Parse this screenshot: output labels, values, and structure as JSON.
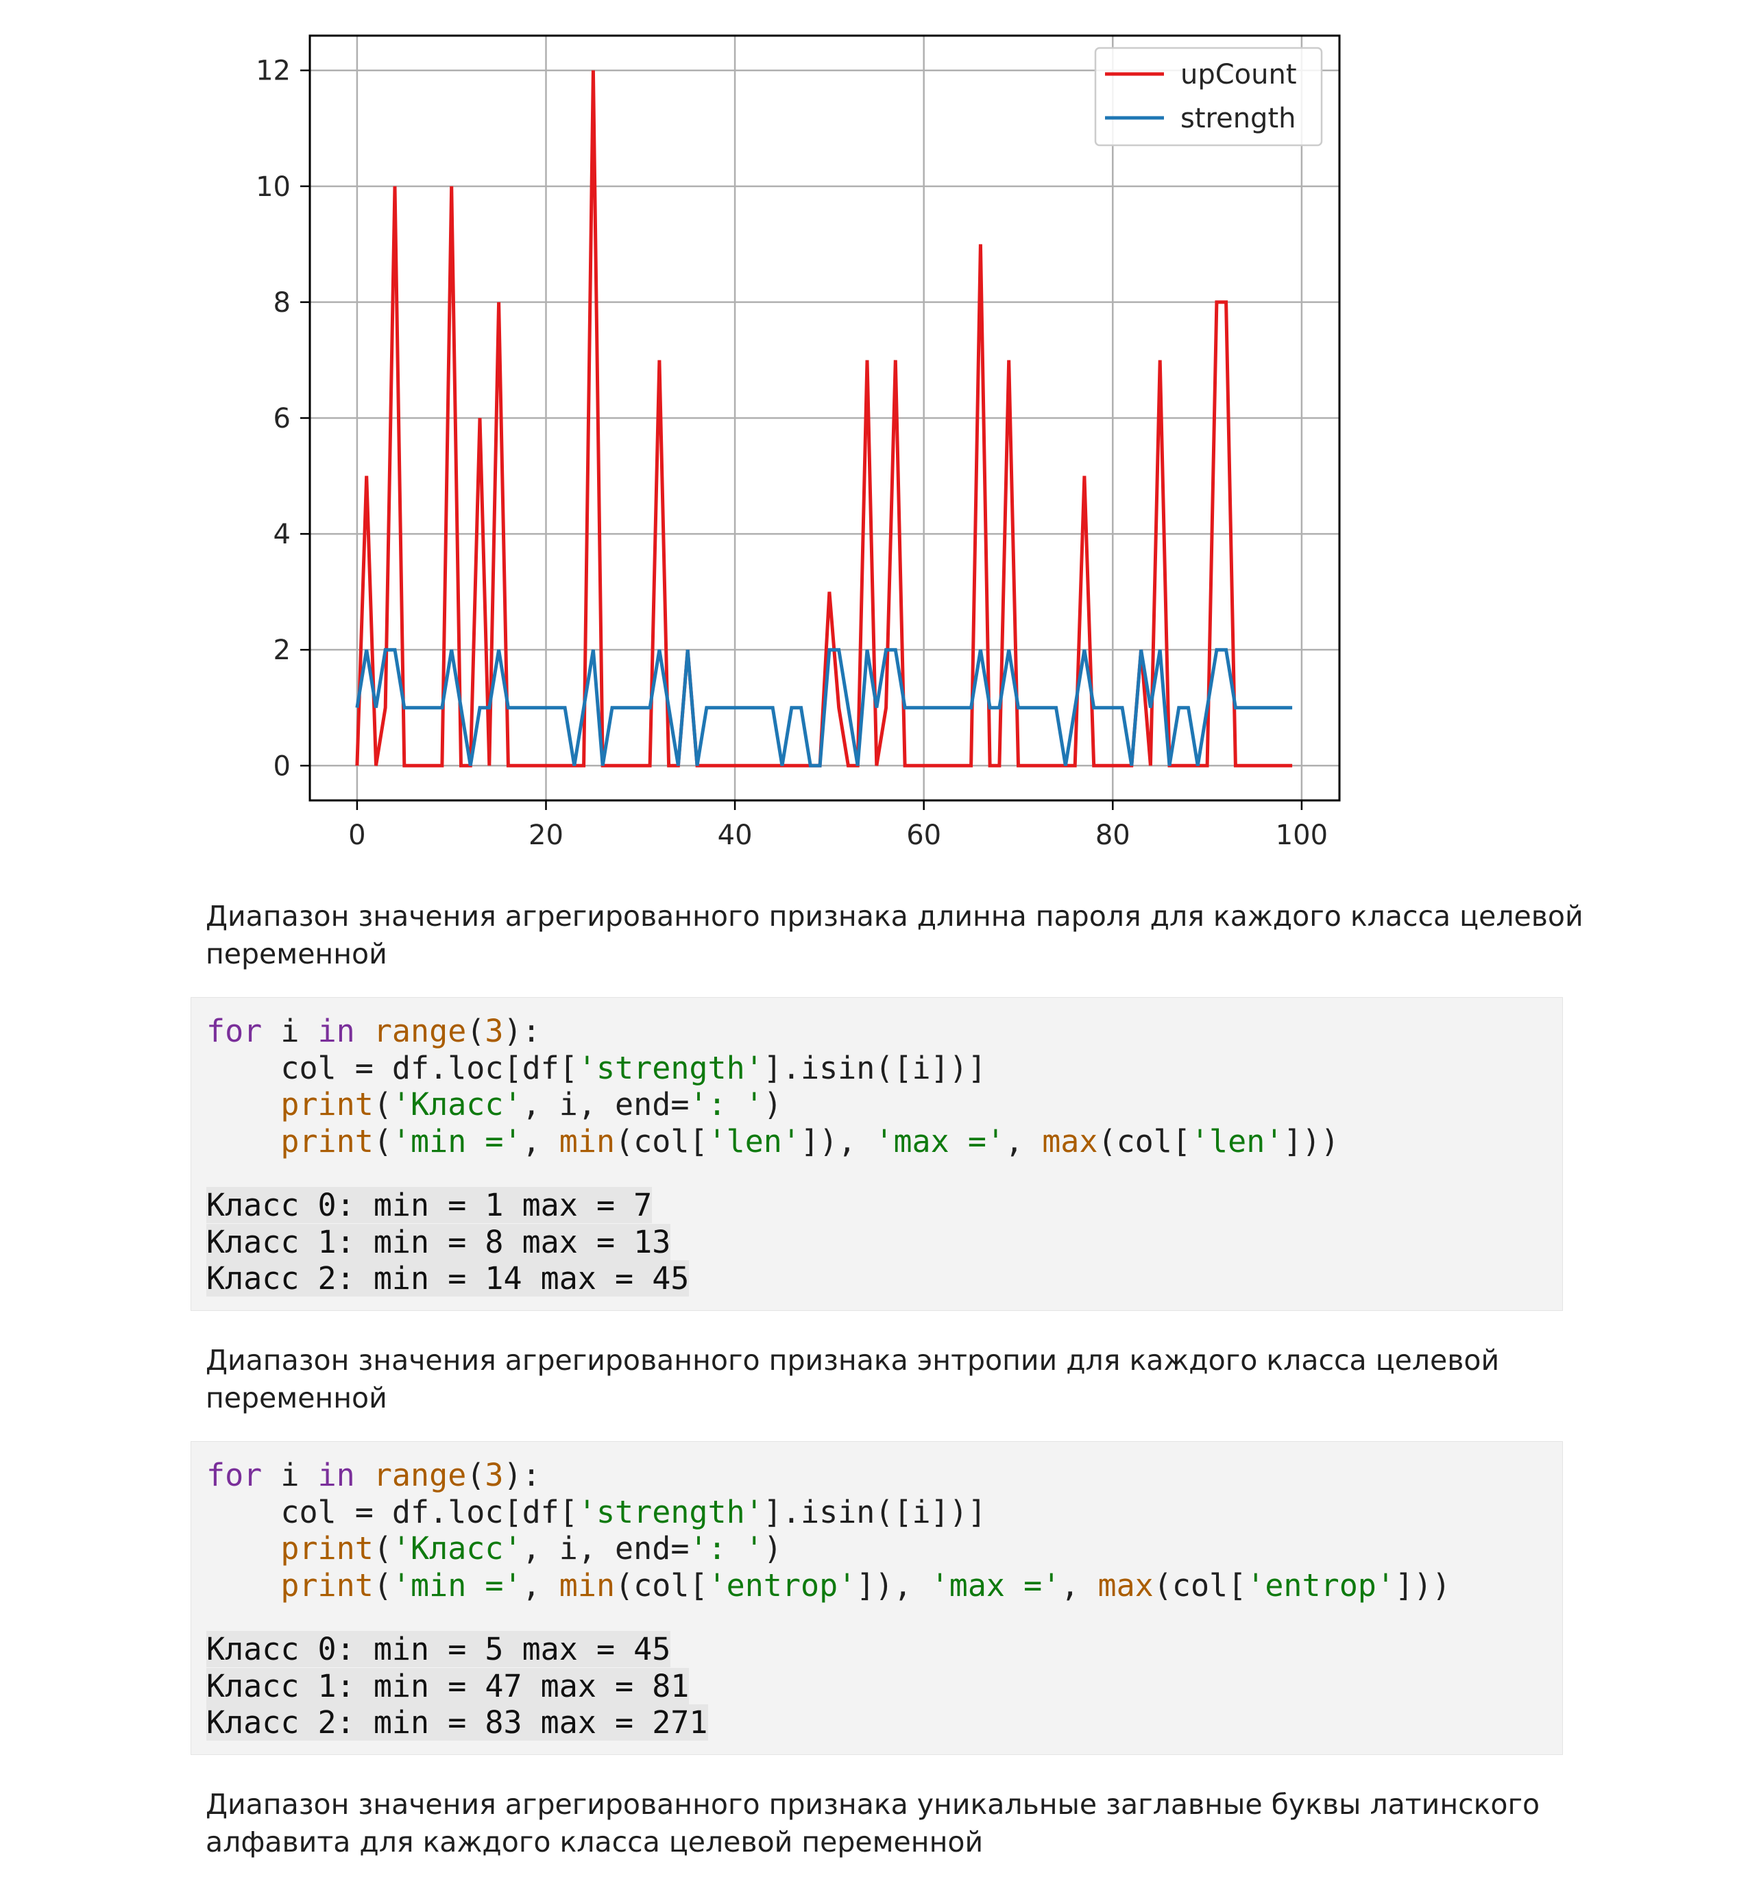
{
  "chart_data": {
    "type": "line",
    "title": "",
    "xlabel": "",
    "ylabel": "",
    "xlim": [
      -5,
      104
    ],
    "ylim": [
      -0.6,
      12.6
    ],
    "xticks": [
      0,
      20,
      40,
      60,
      80,
      100
    ],
    "yticks": [
      0,
      2,
      4,
      6,
      8,
      10,
      12
    ],
    "grid": true,
    "legend_position": "top-right",
    "series": [
      {
        "name": "upCount",
        "color": "#e31a1c",
        "x": [
          0,
          1,
          2,
          3,
          4,
          5,
          6,
          7,
          8,
          9,
          10,
          11,
          12,
          13,
          14,
          15,
          16,
          17,
          18,
          19,
          20,
          21,
          22,
          23,
          24,
          25,
          26,
          27,
          28,
          29,
          30,
          31,
          32,
          33,
          34,
          35,
          36,
          37,
          38,
          39,
          40,
          41,
          42,
          43,
          44,
          45,
          46,
          47,
          48,
          49,
          50,
          51,
          52,
          53,
          54,
          55,
          56,
          57,
          58,
          59,
          60,
          61,
          62,
          63,
          64,
          65,
          66,
          67,
          68,
          69,
          70,
          71,
          72,
          73,
          74,
          75,
          76,
          77,
          78,
          79,
          80,
          81,
          82,
          83,
          84,
          85,
          86,
          87,
          88,
          89,
          90,
          91,
          92,
          93,
          94,
          95,
          96,
          97,
          98,
          99
        ],
        "values": [
          0,
          5,
          0,
          1,
          10,
          0,
          0,
          0,
          0,
          0,
          10,
          0,
          0,
          6,
          0,
          8,
          0,
          0,
          0,
          0,
          0,
          0,
          0,
          0,
          0,
          12,
          0,
          0,
          0,
          0,
          0,
          0,
          7,
          0,
          0,
          2,
          0,
          0,
          0,
          0,
          0,
          0,
          0,
          0,
          0,
          0,
          0,
          0,
          0,
          0,
          3,
          1,
          0,
          0,
          7,
          0,
          1,
          7,
          0,
          0,
          0,
          0,
          0,
          0,
          0,
          0,
          9,
          0,
          0,
          7,
          0,
          0,
          0,
          0,
          0,
          0,
          0,
          5,
          0,
          0,
          0,
          0,
          0,
          2,
          0,
          7,
          0,
          0,
          0,
          0,
          0,
          8,
          8,
          0,
          0,
          0,
          0,
          0,
          0,
          0
        ]
      },
      {
        "name": "strength",
        "color": "#1f77b4",
        "x": [
          0,
          1,
          2,
          3,
          4,
          5,
          6,
          7,
          8,
          9,
          10,
          11,
          12,
          13,
          14,
          15,
          16,
          17,
          18,
          19,
          20,
          21,
          22,
          23,
          24,
          25,
          26,
          27,
          28,
          29,
          30,
          31,
          32,
          33,
          34,
          35,
          36,
          37,
          38,
          39,
          40,
          41,
          42,
          43,
          44,
          45,
          46,
          47,
          48,
          49,
          50,
          51,
          52,
          53,
          54,
          55,
          56,
          57,
          58,
          59,
          60,
          61,
          62,
          63,
          64,
          65,
          66,
          67,
          68,
          69,
          70,
          71,
          72,
          73,
          74,
          75,
          76,
          77,
          78,
          79,
          80,
          81,
          82,
          83,
          84,
          85,
          86,
          87,
          88,
          89,
          90,
          91,
          92,
          93,
          94,
          95,
          96,
          97,
          98,
          99
        ],
        "values": [
          1,
          2,
          1,
          2,
          2,
          1,
          1,
          1,
          1,
          1,
          2,
          1,
          0,
          1,
          1,
          2,
          1,
          1,
          1,
          1,
          1,
          1,
          1,
          0,
          1,
          2,
          0,
          1,
          1,
          1,
          1,
          1,
          2,
          1,
          0,
          2,
          0,
          1,
          1,
          1,
          1,
          1,
          1,
          1,
          1,
          0,
          1,
          1,
          0,
          0,
          2,
          2,
          1,
          0,
          2,
          1,
          2,
          2,
          1,
          1,
          1,
          1,
          1,
          1,
          1,
          1,
          2,
          1,
          1,
          2,
          1,
          1,
          1,
          1,
          1,
          0,
          1,
          2,
          1,
          1,
          1,
          1,
          0,
          2,
          1,
          2,
          0,
          1,
          1,
          0,
          1,
          2,
          2,
          1,
          1,
          1,
          1,
          1,
          1,
          1
        ]
      }
    ]
  },
  "paragraphs": {
    "p1": "Диапазон значения агрегированного признака длинна пароля для каждого класса целевой переменной",
    "p2": "Диапазон значения агрегированного признака энтропии для каждого класса целевой переменной",
    "p3": "Диапазон значения агрегированного признака уникальные заглавные буквы латинского алфавита для каждого класса целевой переменной"
  },
  "cells": [
    {
      "code": {
        "kw_for": "for",
        "var_i": " i ",
        "kw_in": "in",
        "sp": " ",
        "fn_range": "range",
        "lp": "(",
        "num3": "3",
        "rp_colon": "):",
        "line2_a": "    col = df.loc[df[",
        "line2_str": "'strength'",
        "line2_b": "].isin([i])]",
        "line3_indent": "    ",
        "line3_fn": "print",
        "line3_lp": "(",
        "line3_str1": "'Класс'",
        "line3_mid": ", i, end=",
        "line3_str2": "': '",
        "line3_rp": ")",
        "line4_indent": "    ",
        "line4_fn": "print",
        "line4_lp": "(",
        "line4_str1": "'min ='",
        "line4_c1": ", ",
        "line4_fn_min": "min",
        "line4_a": "(col[",
        "line4_str2": "'len'",
        "line4_b": "]), ",
        "line4_str3": "'max ='",
        "line4_c2": ", ",
        "line4_fn_max": "max",
        "line4_c": "(col[",
        "line4_str4": "'len'",
        "line4_d": "]))"
      },
      "output": [
        "Класс 0: min = 1 max = 7",
        "Класс 1: min = 8 max = 13",
        "Класс 2: min = 14 max = 45"
      ]
    },
    {
      "code": {
        "kw_for": "for",
        "var_i": " i ",
        "kw_in": "in",
        "sp": " ",
        "fn_range": "range",
        "lp": "(",
        "num3": "3",
        "rp_colon": "):",
        "line2_a": "    col = df.loc[df[",
        "line2_str": "'strength'",
        "line2_b": "].isin([i])]",
        "line3_indent": "    ",
        "line3_fn": "print",
        "line3_lp": "(",
        "line3_str1": "'Класс'",
        "line3_mid": ", i, end=",
        "line3_str2": "': '",
        "line3_rp": ")",
        "line4_indent": "    ",
        "line4_fn": "print",
        "line4_lp": "(",
        "line4_str1": "'min ='",
        "line4_c1": ", ",
        "line4_fn_min": "min",
        "line4_a": "(col[",
        "line4_str2": "'entrop'",
        "line4_b": "]), ",
        "line4_str3": "'max ='",
        "line4_c2": ", ",
        "line4_fn_max": "max",
        "line4_c": "(col[",
        "line4_str4": "'entrop'",
        "line4_d": "]))"
      },
      "output": [
        "Класс 0: min = 5 max = 45",
        "Класс 1: min = 47 max = 81",
        "Класс 2: min = 83 max = 271"
      ]
    }
  ]
}
